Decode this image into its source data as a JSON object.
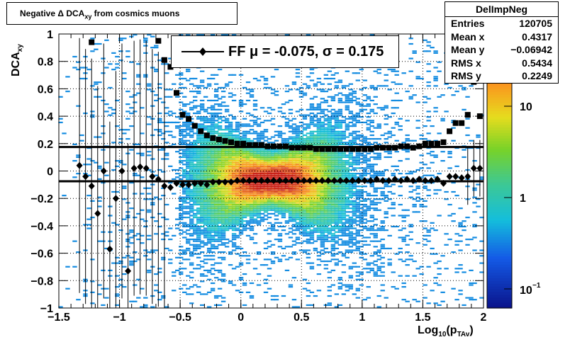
{
  "title": {
    "prefix": "Negative Δ DCA",
    "sub": "xy",
    "suffix": "from cosmics muons"
  },
  "stats": {
    "name": "DelImpNeg",
    "rows": [
      {
        "label": "Entries",
        "value": "120705"
      },
      {
        "label": "Mean x",
        "value": "0.4317"
      },
      {
        "label": "Mean y",
        "value": "−0.06942"
      },
      {
        "label": "RMS x",
        "value": "0.5434"
      },
      {
        "label": "RMS y",
        "value": "0.2249"
      }
    ]
  },
  "legend": {
    "text": "FF μ = -0.075, σ =   0.175"
  },
  "xaxis": {
    "title_main": "Log",
    "title_sub1": "10",
    "title_mid": "(p",
    "title_sub2": "TAv",
    "title_end": ")"
  },
  "yaxis": {
    "title_main": "DCA",
    "title_sub": "xy"
  },
  "chart_data": {
    "type": "heatmap",
    "xlim": [
      -1.5,
      2
    ],
    "ylim": [
      -1,
      1
    ],
    "zscale": "log",
    "xticks": [
      "−1.5",
      "−1",
      "−0.5",
      "0",
      "0.5",
      "1",
      "1.5",
      "2"
    ],
    "xtick_values": [
      -1.5,
      -1,
      -0.5,
      0,
      0.5,
      1,
      1.5,
      2
    ],
    "yticks": [
      "−1",
      "−0.8",
      "−0.6",
      "−0.4",
      "−0.2",
      "0",
      "0.2",
      "0.4",
      "0.6",
      "0.8",
      "1"
    ],
    "ytick_values": [
      -1,
      -0.8,
      -0.6,
      -0.4,
      -0.2,
      0,
      0.2,
      0.4,
      0.6,
      0.8,
      1
    ],
    "zticks": [
      "10",
      "1"
    ],
    "zticks_exp": {
      "base": "10",
      "exp": "−1"
    },
    "hlines": [
      0.175,
      -0.075
    ],
    "mean_points": {
      "x": [
        -1.33,
        -1.28,
        -1.23,
        -1.18,
        -1.13,
        -1.08,
        -1.03,
        -0.98,
        -0.93,
        -0.88,
        -0.83,
        -0.78,
        -0.73,
        -0.68,
        -0.63,
        -0.58,
        -0.53,
        -0.48,
        -0.43,
        -0.38,
        -0.33,
        -0.28,
        -0.23,
        -0.18,
        -0.13,
        -0.08,
        -0.03,
        0.02,
        0.07,
        0.12,
        0.17,
        0.22,
        0.27,
        0.32,
        0.37,
        0.42,
        0.47,
        0.52,
        0.57,
        0.62,
        0.67,
        0.72,
        0.77,
        0.82,
        0.87,
        0.92,
        0.97,
        1.02,
        1.07,
        1.12,
        1.17,
        1.22,
        1.27,
        1.32,
        1.37,
        1.42,
        1.47,
        1.52,
        1.57,
        1.62,
        1.67,
        1.72,
        1.77,
        1.82,
        1.87,
        1.92,
        1.97
      ],
      "y": [
        0.04,
        -0.04,
        -0.11,
        -0.31,
        0.0,
        -0.57,
        -0.2,
        0.0,
        -0.73,
        0.02,
        0.03,
        0.02,
        -0.04,
        -0.06,
        -0.11,
        -0.12,
        -0.09,
        -0.1,
        -0.1,
        -0.09,
        -0.09,
        -0.1,
        -0.08,
        -0.08,
        -0.08,
        -0.08,
        -0.07,
        -0.07,
        -0.07,
        -0.07,
        -0.07,
        -0.07,
        -0.07,
        -0.07,
        -0.07,
        -0.07,
        -0.07,
        -0.07,
        -0.07,
        -0.07,
        -0.07,
        -0.07,
        -0.07,
        -0.07,
        -0.07,
        -0.07,
        -0.07,
        -0.07,
        -0.07,
        -0.06,
        -0.07,
        -0.07,
        -0.06,
        -0.07,
        -0.06,
        -0.07,
        -0.06,
        -0.07,
        -0.07,
        -0.06,
        -0.09,
        -0.04,
        -0.04,
        -0.05,
        -0.04,
        0.02,
        0.02
      ]
    },
    "sigma_points": {
      "x": [
        -1.23,
        -0.68,
        -0.63,
        -0.58,
        -0.53,
        -0.48,
        -0.43,
        -0.38,
        -0.33,
        -0.28,
        -0.23,
        -0.18,
        -0.13,
        -0.08,
        -0.03,
        0.02,
        0.07,
        0.12,
        0.17,
        0.22,
        0.27,
        0.32,
        0.37,
        0.42,
        0.47,
        0.52,
        0.57,
        0.62,
        0.67,
        0.72,
        0.77,
        0.82,
        0.87,
        0.92,
        0.97,
        1.02,
        1.07,
        1.12,
        1.17,
        1.22,
        1.27,
        1.32,
        1.37,
        1.42,
        1.47,
        1.52,
        1.57,
        1.62,
        1.67,
        1.72,
        1.77,
        1.82,
        1.87,
        1.92,
        1.97
      ],
      "y": [
        0.94,
        0.95,
        0.81,
        0.76,
        0.57,
        0.41,
        0.38,
        0.33,
        0.29,
        0.26,
        0.24,
        0.23,
        0.22,
        0.21,
        0.2,
        0.2,
        0.19,
        0.19,
        0.19,
        0.18,
        0.18,
        0.18,
        0.18,
        0.17,
        0.17,
        0.17,
        0.17,
        0.16,
        0.16,
        0.16,
        0.16,
        0.16,
        0.16,
        0.16,
        0.16,
        0.16,
        0.16,
        0.17,
        0.17,
        0.17,
        0.17,
        0.18,
        0.18,
        0.17,
        0.18,
        0.2,
        0.2,
        0.2,
        0.21,
        0.29,
        0.35,
        0.35,
        0.41,
        0.65,
        0.4
      ]
    }
  }
}
